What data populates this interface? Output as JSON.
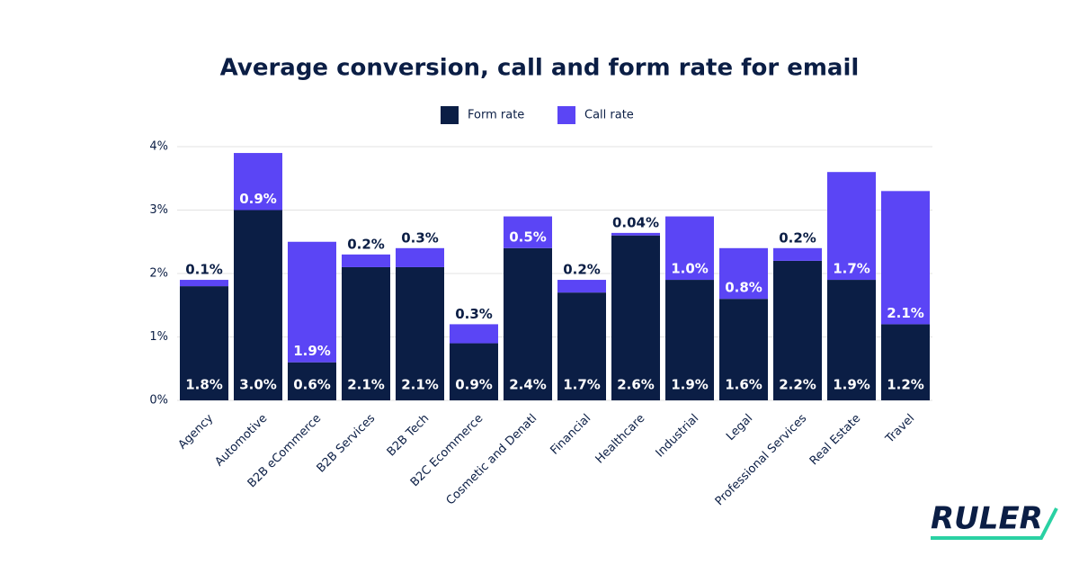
{
  "chart_data": {
    "type": "stacked-bar",
    "title": "Average conversion, call and form rate for email",
    "categories": [
      "Agency",
      "Automotive",
      "B2B eCommerce",
      "B2B Services",
      "B2B Tech",
      "B2C Ecommerce",
      "Cosmetic and Denatl",
      "Financial",
      "Healthcare",
      "Industrial",
      "Legal",
      "Professional Services",
      "Real Estate",
      "Travel"
    ],
    "series": [
      {
        "name": "Form rate",
        "color": "#0b1e45",
        "values": [
          1.8,
          3.0,
          0.6,
          2.1,
          2.1,
          0.9,
          2.4,
          1.7,
          2.6,
          1.9,
          1.6,
          2.2,
          1.9,
          1.2
        ],
        "value_labels": [
          "1.8%",
          "3.0%",
          "0.6%",
          "2.1%",
          "2.1%",
          "0.9%",
          "2.4%",
          "1.7%",
          "2.6%",
          "1.9%",
          "1.6%",
          "2.2%",
          "1.9%",
          "1.2%"
        ]
      },
      {
        "name": "Call rate",
        "color": "#5b45f5",
        "values": [
          0.1,
          0.9,
          1.9,
          0.2,
          0.3,
          0.3,
          0.5,
          0.2,
          0.04,
          1.0,
          0.8,
          0.2,
          1.7,
          2.1
        ],
        "value_labels": [
          "0.1%",
          "0.9%",
          "1.9%",
          "0.2%",
          "0.3%",
          "0.3%",
          "0.5%",
          "0.2%",
          "0.04%",
          "1.0%",
          "0.8%",
          "0.2%",
          "1.7%",
          "2.1%"
        ]
      }
    ],
    "ylim": [
      0,
      4
    ],
    "yticks": [
      {
        "value": 0,
        "label": "0%"
      },
      {
        "value": 1,
        "label": "1%"
      },
      {
        "value": 2,
        "label": "2%"
      },
      {
        "value": 3,
        "label": "3%"
      },
      {
        "value": 4,
        "label": "4%"
      }
    ],
    "grid": true,
    "legend": "top"
  },
  "logo": "RULER"
}
